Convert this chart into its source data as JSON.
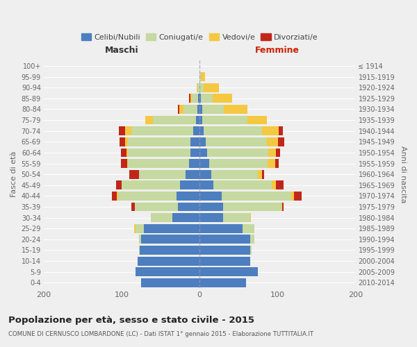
{
  "age_groups": [
    "0-4",
    "5-9",
    "10-14",
    "15-19",
    "20-24",
    "25-29",
    "30-34",
    "35-39",
    "40-44",
    "45-49",
    "50-54",
    "55-59",
    "60-64",
    "65-69",
    "70-74",
    "75-79",
    "80-84",
    "85-89",
    "90-94",
    "95-99",
    "100+"
  ],
  "birth_years": [
    "2010-2014",
    "2005-2009",
    "2000-2004",
    "1995-1999",
    "1990-1994",
    "1985-1989",
    "1980-1984",
    "1975-1979",
    "1970-1974",
    "1965-1969",
    "1960-1964",
    "1955-1959",
    "1950-1954",
    "1945-1949",
    "1940-1944",
    "1935-1939",
    "1930-1934",
    "1925-1929",
    "1920-1924",
    "1915-1919",
    "≤ 1914"
  ],
  "maschi": {
    "celibi": [
      75,
      82,
      80,
      77,
      75,
      72,
      35,
      28,
      30,
      25,
      18,
      14,
      12,
      12,
      8,
      5,
      3,
      2,
      0,
      0,
      0
    ],
    "coniugati": [
      0,
      0,
      0,
      1,
      3,
      10,
      28,
      55,
      75,
      75,
      60,
      78,
      80,
      80,
      80,
      55,
      18,
      8,
      3,
      0,
      0
    ],
    "vedovi": [
      0,
      0,
      0,
      0,
      0,
      2,
      0,
      0,
      1,
      0,
      0,
      1,
      2,
      4,
      8,
      10,
      5,
      2,
      1,
      0,
      0
    ],
    "divorziati": [
      0,
      0,
      0,
      0,
      0,
      0,
      0,
      5,
      7,
      7,
      12,
      8,
      7,
      7,
      8,
      0,
      2,
      2,
      0,
      0,
      0
    ]
  },
  "femmine": {
    "nubili": [
      60,
      75,
      65,
      65,
      65,
      55,
      30,
      30,
      28,
      18,
      15,
      12,
      10,
      8,
      5,
      3,
      3,
      2,
      0,
      0,
      0
    ],
    "coniugate": [
      0,
      0,
      0,
      2,
      5,
      15,
      35,
      75,
      90,
      75,
      60,
      75,
      78,
      78,
      75,
      58,
      28,
      15,
      5,
      2,
      0
    ],
    "vedove": [
      0,
      0,
      0,
      0,
      0,
      0,
      1,
      1,
      3,
      5,
      5,
      10,
      10,
      15,
      22,
      25,
      30,
      25,
      20,
      5,
      0
    ],
    "divorziate": [
      0,
      0,
      0,
      0,
      0,
      0,
      0,
      2,
      10,
      10,
      3,
      5,
      5,
      8,
      5,
      0,
      0,
      0,
      0,
      0,
      0
    ]
  },
  "colors": {
    "celibi": "#4d7ebf",
    "coniugati": "#c5d9a0",
    "vedovi": "#f5c842",
    "divorziati": "#c0271a"
  },
  "xlim": 200,
  "title": "Popolazione per età, sesso e stato civile - 2015",
  "subtitle": "COMUNE DI CERNUSCO LOMBARDONE (LC) - Dati ISTAT 1° gennaio 2015 - Elaborazione TUTTITALIA.IT",
  "ylabel_left": "Fasce di età",
  "ylabel_right": "Anni di nascita",
  "bg_color": "#efefef",
  "grid_color": "#ffffff",
  "bar_height": 0.82
}
